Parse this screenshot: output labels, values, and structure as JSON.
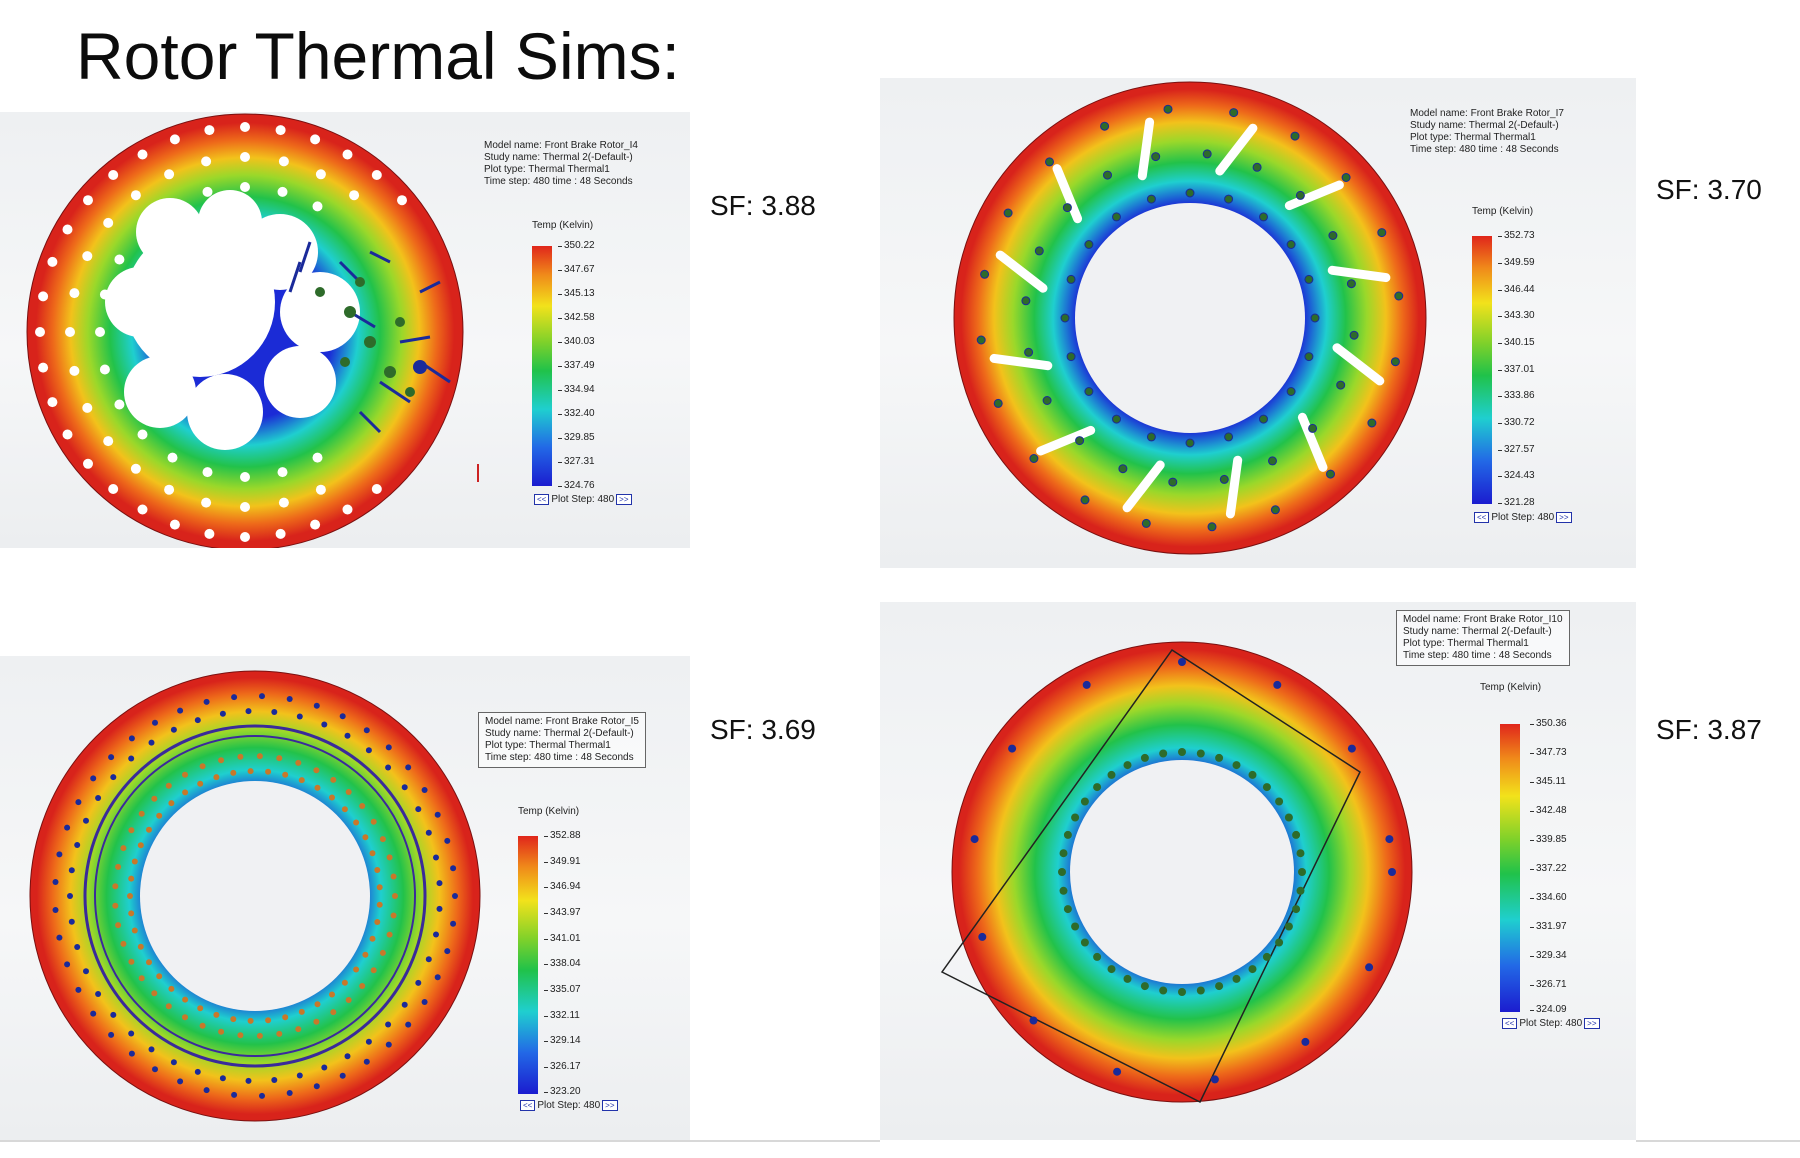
{
  "slide_title": "Rotor Thermal Sims:",
  "panels": [
    {
      "model_name": "Model name: Front Brake Rotor_I4",
      "study_name": "Study name: Thermal 2(-Default-)",
      "plot_type": "Plot type: Thermal Thermal1",
      "time_step": "Time step: 480   time : 48 Seconds",
      "legend_title": "Temp (Kelvin)",
      "ticks": [
        "350.22",
        "347.67",
        "345.13",
        "342.58",
        "340.03",
        "337.49",
        "334.94",
        "332.40",
        "329.85",
        "327.31",
        "324.76"
      ],
      "plot_step": "Plot Step: 480",
      "sf": "SF: 3.88"
    },
    {
      "model_name": "Model name: Front Brake Rotor_I7",
      "study_name": "Study name: Thermal 2(-Default-)",
      "plot_type": "Plot type: Thermal Thermal1",
      "time_step": "Time step: 480   time : 48 Seconds",
      "legend_title": "Temp (Kelvin)",
      "ticks": [
        "352.73",
        "349.59",
        "346.44",
        "343.30",
        "340.15",
        "337.01",
        "333.86",
        "330.72",
        "327.57",
        "324.43",
        "321.28"
      ],
      "plot_step": "Plot Step: 480",
      "sf": "SF: 3.70"
    },
    {
      "model_name": "Model name: Front Brake Rotor_I5",
      "study_name": "Study name: Thermal 2(-Default-)",
      "plot_type": "Plot type: Thermal Thermal1",
      "time_step": "Time step: 480   time : 48 Seconds",
      "legend_title": "Temp (Kelvin)",
      "ticks": [
        "352.88",
        "349.91",
        "346.94",
        "343.97",
        "341.01",
        "338.04",
        "335.07",
        "332.11",
        "329.14",
        "326.17",
        "323.20"
      ],
      "plot_step": "Plot Step: 480",
      "sf": "SF: 3.69"
    },
    {
      "model_name": "Model name: Front Brake Rotor_I10",
      "study_name": "Study name: Thermal 2(-Default-)",
      "plot_type": "Plot type: Thermal Thermal1",
      "time_step": "Time step: 480   time : 48 Seconds",
      "legend_title": "Temp (Kelvin)",
      "ticks": [
        "350.36",
        "347.73",
        "345.11",
        "342.48",
        "339.85",
        "337.22",
        "334.60",
        "331.97",
        "329.34",
        "326.71",
        "324.09"
      ],
      "plot_step": "Plot Step: 480",
      "sf": "SF: 3.87"
    }
  ],
  "nav_prev": "<<",
  "nav_next": ">>",
  "colors": {
    "hot": "#d8231b",
    "warm": "#f2e21b",
    "mid": "#22c24a",
    "cool": "#1fcfcf",
    "cold": "#1b1ccf",
    "fixture": "#1a2a9a"
  }
}
